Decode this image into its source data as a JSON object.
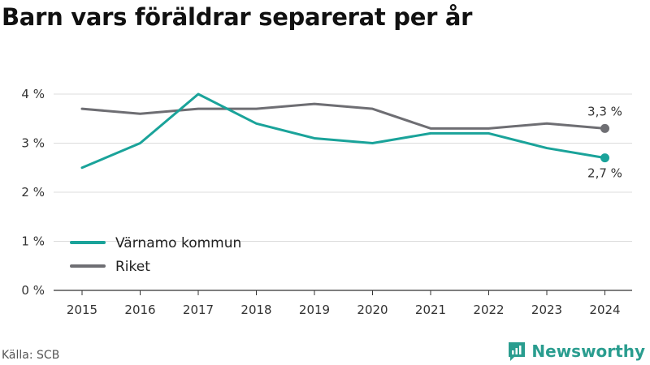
{
  "title": "Barn vars föräldrar separerat per år",
  "source": "Källa: SCB",
  "brand": "Newsworthy",
  "colors": {
    "varnamo": "#1aa39a",
    "riket": "#6e6e73",
    "grid": "#dcdcdc",
    "brand": "#2a9d8f"
  },
  "chart_data": {
    "type": "line",
    "title": "Barn vars föräldrar separerat per år",
    "categories": [
      "2015",
      "2016",
      "2017",
      "2018",
      "2019",
      "2020",
      "2021",
      "2022",
      "2023",
      "2024"
    ],
    "yticks": [
      "0 %",
      "1 %",
      "2 %",
      "3 %",
      "4 %"
    ],
    "ylim": [
      0,
      4
    ],
    "grid": true,
    "legend": "bottom-left",
    "series": [
      {
        "name": "Värnamo kommun",
        "color": "#1aa39a",
        "values": [
          2.5,
          3.0,
          4.0,
          3.4,
          3.1,
          3.0,
          3.2,
          3.2,
          2.9,
          2.7
        ],
        "end_label": "2,7 %"
      },
      {
        "name": "Riket",
        "color": "#6e6e73",
        "values": [
          3.7,
          3.6,
          3.7,
          3.7,
          3.8,
          3.7,
          3.3,
          3.3,
          3.4,
          3.3
        ],
        "end_label": "3,3 %"
      }
    ]
  }
}
